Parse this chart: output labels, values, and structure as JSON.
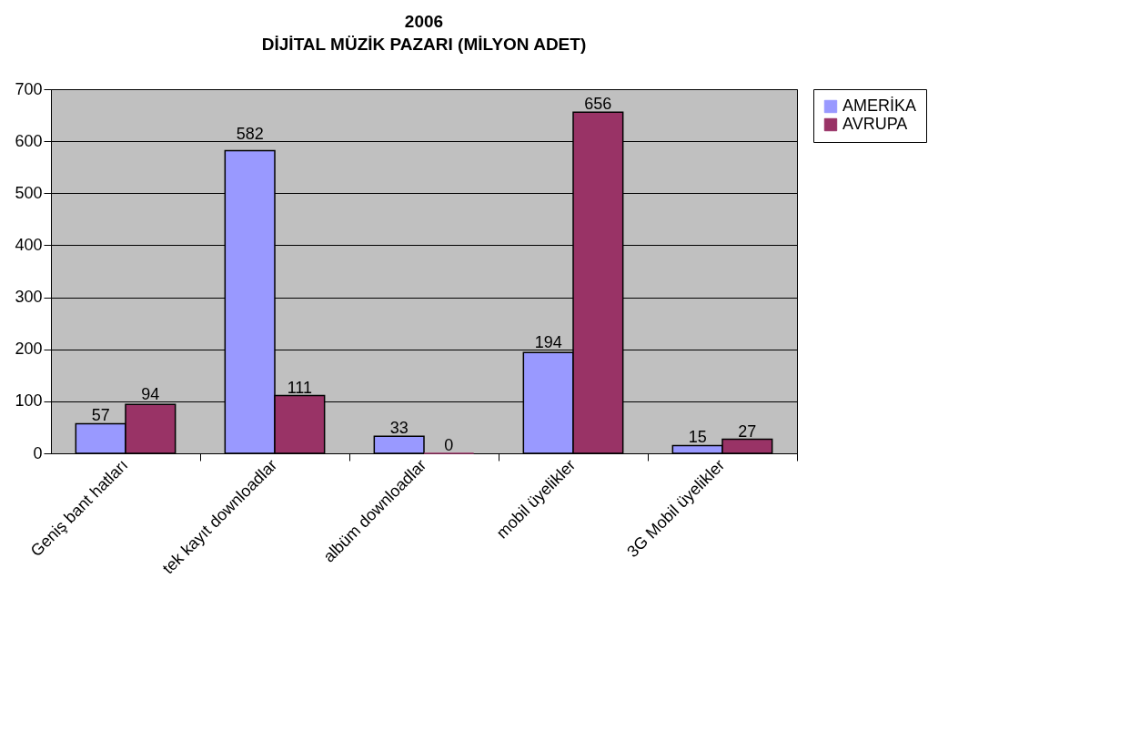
{
  "chart_data": {
    "type": "bar",
    "title": "2006",
    "subtitle": "DİJİTAL MÜZİK PAZARI (MİLYON ADET)",
    "categories": [
      "Geniş bant hatları",
      "tek kayıt downloadlar",
      "albüm downloadlar",
      "mobil üyelikler",
      "3G Mobil üyelikler"
    ],
    "series": [
      {
        "name": "AMERİKA",
        "color": "#9999ff",
        "values": [
          57,
          582,
          33,
          194,
          15
        ]
      },
      {
        "name": "AVRUPA",
        "color": "#993366",
        "values": [
          94,
          111,
          0,
          656,
          27
        ]
      }
    ],
    "ylim": [
      0,
      700
    ],
    "yticks": [
      0,
      100,
      200,
      300,
      400,
      500,
      600,
      700
    ],
    "grid": "y",
    "legend": "right",
    "data_labels": true
  }
}
